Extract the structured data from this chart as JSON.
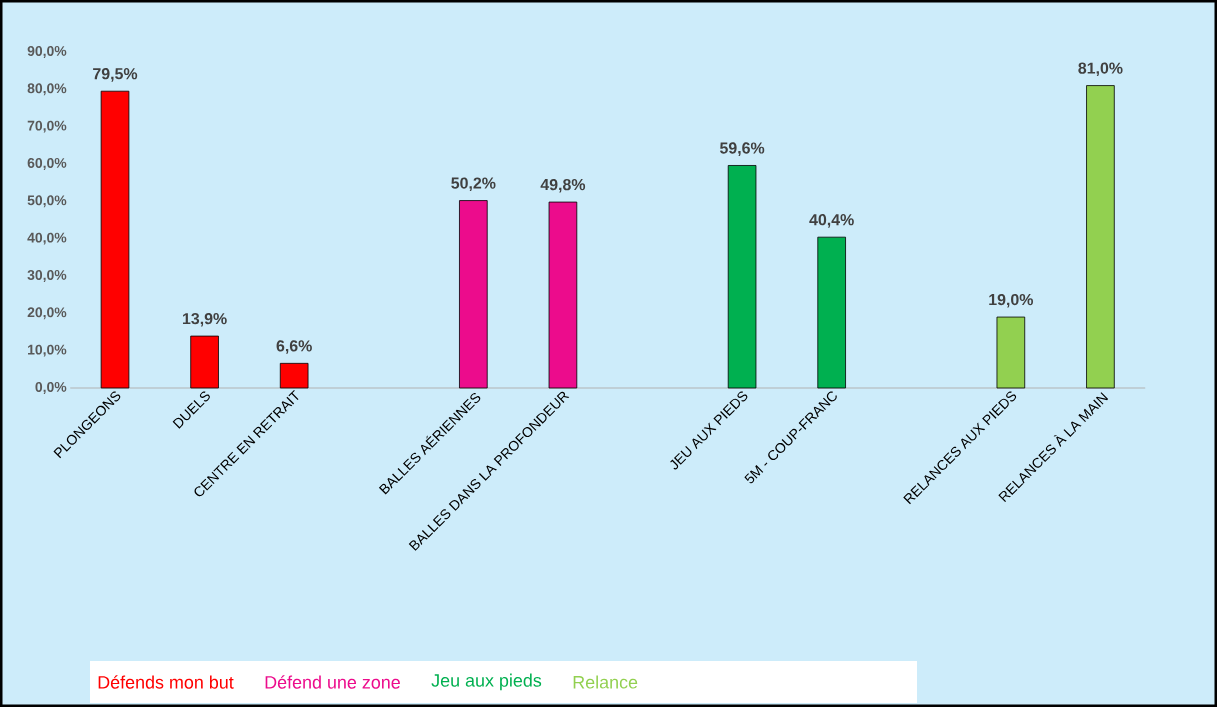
{
  "chart_data": {
    "type": "bar",
    "categories": [
      "PLONGEONS",
      "DUELS",
      "CENTRE EN RETRAIT",
      null,
      "BALLES AÉRIENNES",
      "BALLES DANS LA PROFONDEUR",
      null,
      "JEU AUX PIEDS",
      "5M - COUP-FRANC",
      null,
      "RELANCES AUX PIEDS",
      "RELANCES À LA MAIN"
    ],
    "series": [
      {
        "name": "Défends mon but",
        "color": "#ff0000",
        "values": [
          79.5,
          13.9,
          6.6,
          null,
          null,
          null,
          null,
          null,
          null,
          null,
          null,
          null
        ],
        "value_labels": [
          "79,5%",
          "13,9%",
          "6,6%",
          null,
          null,
          null,
          null,
          null,
          null,
          null,
          null,
          null
        ]
      },
      {
        "name": "Défend une zone",
        "color": "#ec0c8c",
        "values": [
          null,
          null,
          null,
          null,
          50.2,
          49.8,
          null,
          null,
          null,
          null,
          null,
          null
        ],
        "value_labels": [
          null,
          null,
          null,
          null,
          "50,2%",
          "49,8%",
          null,
          null,
          null,
          null,
          null,
          null
        ]
      },
      {
        "name": "Jeu aux pieds",
        "color": "#00b050",
        "values": [
          null,
          null,
          null,
          null,
          null,
          null,
          null,
          59.6,
          40.4,
          null,
          null,
          null
        ],
        "value_labels": [
          null,
          null,
          null,
          null,
          null,
          null,
          null,
          "59,6%",
          "40,4%",
          null,
          null,
          null
        ]
      },
      {
        "name": "Relance",
        "color": "#92d050",
        "values": [
          null,
          null,
          null,
          null,
          null,
          null,
          null,
          null,
          null,
          null,
          19.0,
          81.0
        ],
        "value_labels": [
          null,
          null,
          null,
          null,
          null,
          null,
          null,
          null,
          null,
          null,
          "19,0%",
          "81,0%"
        ]
      }
    ],
    "ylim": [
      0,
      90
    ],
    "yticks": [
      {
        "value": 0,
        "label": "0,0%"
      },
      {
        "value": 10,
        "label": "10,0%"
      },
      {
        "value": 20,
        "label": "20,0%"
      },
      {
        "value": 30,
        "label": "30,0%"
      },
      {
        "value": 40,
        "label": "40,0%"
      },
      {
        "value": 50,
        "label": "50,0%"
      },
      {
        "value": 60,
        "label": "60,0%"
      },
      {
        "value": 70,
        "label": "70,0%"
      },
      {
        "value": 80,
        "label": "80,0%"
      },
      {
        "value": 90,
        "label": "90,0%"
      }
    ],
    "grid": false,
    "legend": "bottom"
  }
}
